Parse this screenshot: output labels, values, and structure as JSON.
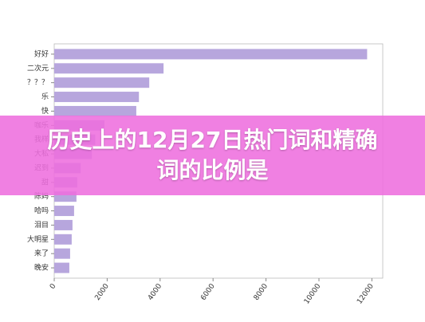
{
  "chart_data": {
    "type": "barh",
    "title": "历史上的12月27日热门词和精确词的比例是",
    "categories": [
      "好好",
      "二次元",
      "？？？",
      "乐",
      "快",
      "咖乐",
      "我样",
      "大私",
      "迟到",
      "甜",
      "陈妈",
      "哈吗",
      "泪目",
      "大明星",
      "来了",
      "晚安"
    ],
    "values": [
      11820,
      4130,
      3590,
      3200,
      3100,
      1900,
      1550,
      1420,
      1000,
      870,
      840,
      750,
      690,
      660,
      600,
      570
    ],
    "color": "#b7a6dd",
    "xlim": [
      0,
      12410
    ],
    "xticks": [
      0,
      2000,
      4000,
      6000,
      8000,
      10000,
      12000
    ]
  }
}
